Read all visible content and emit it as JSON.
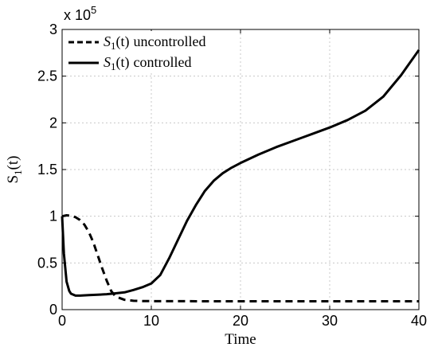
{
  "chart_data": {
    "type": "line",
    "title": "",
    "xlabel": "Time",
    "ylabel": "S",
    "ylabel_sub": "1",
    "ylabel_suffix": "(t)",
    "xlim": [
      0,
      40
    ],
    "ylim": [
      0,
      300000
    ],
    "xticks": [
      0,
      10,
      20,
      30,
      40
    ],
    "yticks": [
      0,
      50000,
      100000,
      150000,
      200000,
      250000,
      300000
    ],
    "ytick_labels": [
      "0",
      "0.5",
      "1",
      "1.5",
      "2",
      "2.5",
      "3"
    ],
    "yscale_base": "x 10",
    "yscale_exp": "5",
    "grid": true,
    "legend_position": "top-left",
    "series": [
      {
        "name": "S1(t) uncontrolled",
        "legend_label": {
          "var": "S",
          "sub": "1",
          "arg": "(t)",
          "text": "uncontrolled"
        },
        "style": "dashed",
        "color": "#000000",
        "x": [
          0,
          0.5,
          1,
          1.5,
          2,
          2.5,
          3,
          3.5,
          4,
          4.5,
          5,
          5.5,
          6,
          7,
          8,
          9,
          10,
          15,
          20,
          25,
          30,
          35,
          40
        ],
        "y": [
          100000,
          101000,
          100500,
          99000,
          96000,
          91000,
          83000,
          72000,
          58000,
          44000,
          31000,
          20000,
          14000,
          10500,
          9500,
          9200,
          9100,
          9000,
          9000,
          9000,
          9000,
          9000,
          9000
        ]
      },
      {
        "name": "S1(t) controlled",
        "legend_label": {
          "var": "S",
          "sub": "1",
          "arg": "(t)",
          "text": "controlled"
        },
        "style": "solid",
        "color": "#000000",
        "x": [
          0,
          0.2,
          0.5,
          0.8,
          1,
          1.5,
          2,
          3,
          4,
          5,
          6,
          7,
          8,
          9,
          10,
          11,
          12,
          13,
          14,
          15,
          16,
          17,
          18,
          19,
          20,
          22,
          24,
          26,
          28,
          30,
          32,
          34,
          36,
          38,
          40
        ],
        "y": [
          100000,
          60000,
          30000,
          20000,
          17000,
          15000,
          15000,
          15500,
          16000,
          16500,
          17500,
          18500,
          21000,
          24000,
          28000,
          37000,
          55000,
          75000,
          95000,
          112000,
          127000,
          138000,
          146000,
          152000,
          157000,
          166000,
          174000,
          181000,
          188000,
          195000,
          203000,
          213000,
          228000,
          251000,
          278000
        ]
      }
    ]
  }
}
